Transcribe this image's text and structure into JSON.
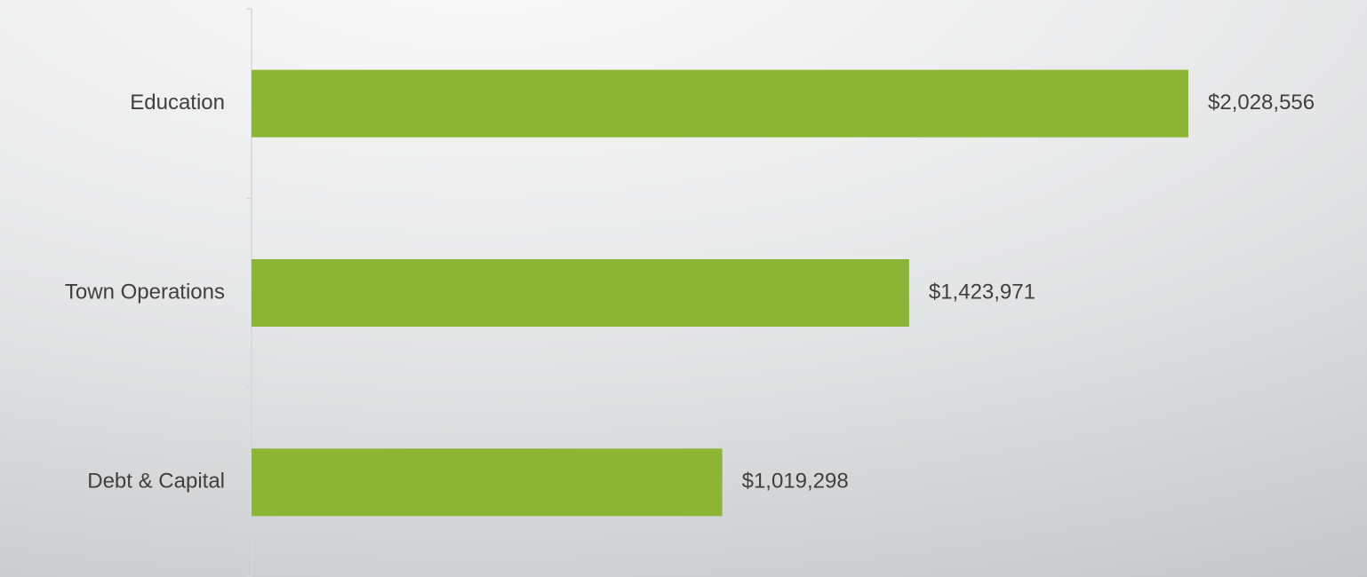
{
  "chart_data": {
    "type": "bar",
    "orientation": "horizontal",
    "categories": [
      "Education",
      "Town Operations",
      "Debt & Capital"
    ],
    "values": [
      2028556,
      1423971,
      1019298
    ],
    "value_labels": [
      "$2,028,556",
      "$1,423,971",
      "$1,019,298"
    ],
    "color": "#8cb535",
    "xlim": [
      0,
      2400000
    ]
  }
}
